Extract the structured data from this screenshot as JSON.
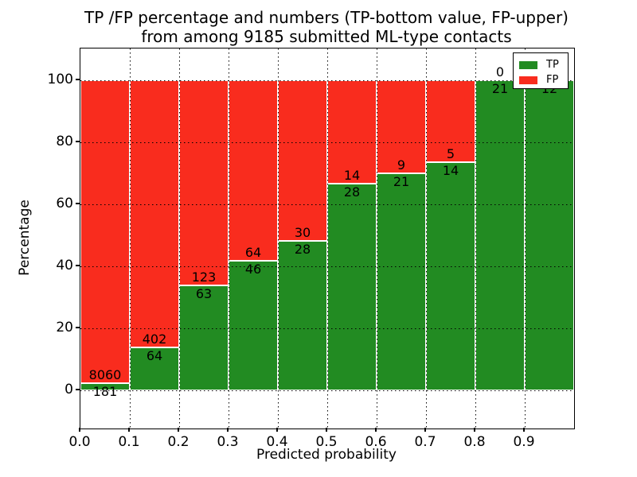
{
  "chart_data": {
    "type": "bar",
    "stacked": true,
    "normalized_percent": true,
    "title_line1": "TP /FP percentage and numbers (TP-bottom value, FP-upper)",
    "title_line2": "from among 9185 submitted ML-type contacts",
    "xlabel": "Predicted probability",
    "ylabel": "Percentage",
    "total_contacts": 9185,
    "bin_width": 0.1,
    "bin_starts": [
      0.0,
      0.1,
      0.2,
      0.3,
      0.4,
      0.5,
      0.6,
      0.7,
      0.8,
      0.9
    ],
    "x_tick_labels": [
      "0.0",
      "0.1",
      "0.2",
      "0.3",
      "0.4",
      "0.5",
      "0.6",
      "0.7",
      "0.8",
      "0.9"
    ],
    "y_ticks": [
      0,
      20,
      40,
      60,
      80,
      100
    ],
    "y_tick_labels": [
      "0",
      "20",
      "40",
      "60",
      "80",
      "100"
    ],
    "xlim": [
      0.0,
      1.0
    ],
    "ylim_percent": [
      -12.3,
      110.3
    ],
    "grid": {
      "style": "dotted",
      "color": "#000000",
      "drawn_over_bars": true
    },
    "bar_edge_color": "#ffffff",
    "colors": {
      "tp": "#228B22",
      "fp": "#F92C1E",
      "background": "#ffffff",
      "text": "#000000"
    },
    "legend": {
      "position": "upper right",
      "entries": [
        {
          "label": "TP",
          "color": "#228B22"
        },
        {
          "label": "FP",
          "color": "#F92C1E"
        }
      ]
    },
    "series": [
      {
        "name": "TP",
        "color": "#228B22",
        "counts": [
          181,
          64,
          63,
          46,
          28,
          28,
          21,
          14,
          21,
          12
        ]
      },
      {
        "name": "FP",
        "color": "#F92C1E",
        "counts": [
          8060,
          402,
          123,
          64,
          30,
          14,
          9,
          5,
          0,
          0
        ]
      }
    ],
    "tp_percent_per_bin": [
      2.2,
      13.7,
      33.9,
      41.8,
      48.3,
      66.7,
      70.0,
      73.7,
      100.0,
      100.0
    ]
  }
}
